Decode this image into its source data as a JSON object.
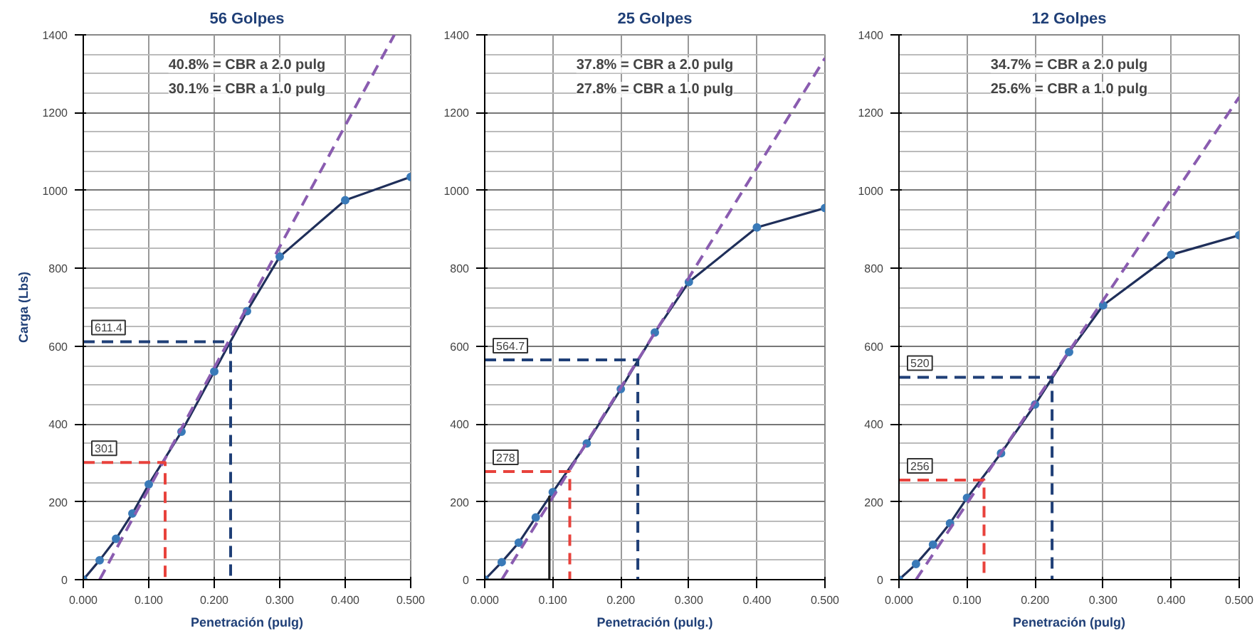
{
  "chart_data": [
    {
      "type": "line",
      "title": "56 Golpes",
      "xlabel": "Penetración (pulg)",
      "ylabel": "Carga (Lbs)",
      "xlim": [
        0,
        0.5
      ],
      "ylim": [
        0,
        1400
      ],
      "xticks": [
        {
          "value": 0,
          "label": "0.000"
        },
        {
          "value": 0.1,
          "label": "0.100"
        },
        {
          "value": 0.2,
          "label": "0.200"
        },
        {
          "value": 0.3,
          "label": "0.300"
        },
        {
          "value": 0.4,
          "label": "0.400"
        },
        {
          "value": 0.5,
          "label": "0.500"
        }
      ],
      "yticks": [
        0,
        200,
        400,
        600,
        800,
        1000,
        1200,
        1400
      ],
      "grid": true,
      "line_style": "solid",
      "series": [
        {
          "color": "#1f2f5a",
          "marker": "circle",
          "x": [
            0,
            0.025,
            0.05,
            0.075,
            0.1,
            0.15,
            0.2,
            0.25,
            0.3,
            0.4,
            0.5
          ],
          "values": [
            0,
            50,
            105,
            170,
            245,
            380,
            535,
            690,
            830,
            975,
            1035
          ]
        },
        {
          "color": "#8a5cb0",
          "line_style": "dashed",
          "marker": "none",
          "x": [
            0.025,
            0.475
          ],
          "values": [
            0,
            1400
          ]
        },
        {
          "color": "#e8423c",
          "line_style": "dashed",
          "marker": "none",
          "x": [
            0,
            0.125,
            0.125
          ],
          "values": [
            301,
            301,
            0
          ]
        },
        {
          "color": "#1f3f77",
          "line_style": "dashed",
          "marker": "none",
          "x": [
            0,
            0.225,
            0.225
          ],
          "values": [
            611.4,
            611.4,
            0
          ]
        }
      ],
      "annotations": [
        "40.8% = CBR a 2.0 pulg",
        "30.1% = CBR a 1.0 pulg",
        {
          "text": "301",
          "y": 301
        },
        {
          "text": "611.4",
          "y": 611.4
        }
      ]
    },
    {
      "type": "line",
      "title": "25 Golpes",
      "xlabel": "Penetración (pulg.)",
      "xlim": [
        0,
        0.5
      ],
      "ylim": [
        0,
        1400
      ],
      "xticks": [
        {
          "value": 0,
          "label": "0.000"
        },
        {
          "value": 0.1,
          "label": "0.100"
        },
        {
          "value": 0.2,
          "label": "0.200"
        },
        {
          "value": 0.3,
          "label": "0.300"
        },
        {
          "value": 0.4,
          "label": "0.400"
        },
        {
          "value": 0.5,
          "label": "0.500"
        }
      ],
      "yticks": [
        0,
        200,
        400,
        600,
        800,
        1000,
        1200,
        1400
      ],
      "grid": true,
      "line_style": "solid",
      "series": [
        {
          "color": "#1f2f5a",
          "marker": "circle",
          "x": [
            0,
            0.025,
            0.05,
            0.075,
            0.1,
            0.15,
            0.2,
            0.25,
            0.3,
            0.4,
            0.5
          ],
          "values": [
            0,
            45,
            95,
            160,
            225,
            350,
            490,
            635,
            765,
            905,
            955
          ]
        },
        {
          "color": "#8a5cb0",
          "line_style": "dashed",
          "marker": "none",
          "x": [
            0.025,
            0.5
          ],
          "values": [
            0,
            1340
          ]
        },
        {
          "color": "#222222",
          "marker": "none",
          "x": [
            0,
            0.095,
            0.095
          ],
          "values": [
            0,
            0,
            215
          ]
        },
        {
          "color": "#e8423c",
          "line_style": "dashed",
          "marker": "none",
          "x": [
            0,
            0.125,
            0.125
          ],
          "values": [
            278,
            278,
            0
          ]
        },
        {
          "color": "#1f3f77",
          "line_style": "dashed",
          "marker": "none",
          "x": [
            0,
            0.225,
            0.225
          ],
          "values": [
            564.7,
            564.7,
            0
          ]
        }
      ],
      "annotations": [
        "37.8% = CBR a 2.0 pulg",
        "27.8% = CBR a 1.0 pulg",
        {
          "text": "278",
          "y": 278
        },
        {
          "text": "564.7",
          "y": 564.7
        }
      ]
    },
    {
      "type": "line",
      "title": "12 Golpes",
      "xlabel": "Penetración (pulg)",
      "xlim": [
        0,
        0.5
      ],
      "ylim": [
        0,
        1400
      ],
      "xticks": [
        {
          "value": 0,
          "label": "0.000"
        },
        {
          "value": 0.1,
          "label": "0.100"
        },
        {
          "value": 0.2,
          "label": "0.200"
        },
        {
          "value": 0.3,
          "label": "0.300"
        },
        {
          "value": 0.4,
          "label": "0.400"
        },
        {
          "value": 0.5,
          "label": "0.500"
        }
      ],
      "yticks": [
        0,
        200,
        400,
        600,
        800,
        1000,
        1200,
        1400
      ],
      "grid": true,
      "line_style": "solid",
      "series": [
        {
          "color": "#1f2f5a",
          "marker": "circle",
          "x": [
            0,
            0.025,
            0.05,
            0.075,
            0.1,
            0.15,
            0.2,
            0.25,
            0.3,
            0.4,
            0.5
          ],
          "values": [
            0,
            40,
            90,
            145,
            210,
            325,
            450,
            585,
            705,
            835,
            885
          ]
        },
        {
          "color": "#8a5cb0",
          "line_style": "dashed",
          "marker": "none",
          "x": [
            0.025,
            0.5
          ],
          "values": [
            0,
            1240
          ]
        },
        {
          "color": "#e8423c",
          "line_style": "dashed",
          "marker": "none",
          "x": [
            0,
            0.125,
            0.125
          ],
          "values": [
            256,
            256,
            0
          ]
        },
        {
          "color": "#1f3f77",
          "line_style": "dashed",
          "marker": "none",
          "x": [
            0,
            0.225,
            0.225
          ],
          "values": [
            520,
            520,
            0
          ]
        }
      ],
      "annotations": [
        "34.7% = CBR a 2.0 pulg",
        "25.6% = CBR a 1.0 pulg",
        {
          "text": "256",
          "y": 256
        },
        {
          "text": "520",
          "y": 520
        }
      ]
    }
  ]
}
